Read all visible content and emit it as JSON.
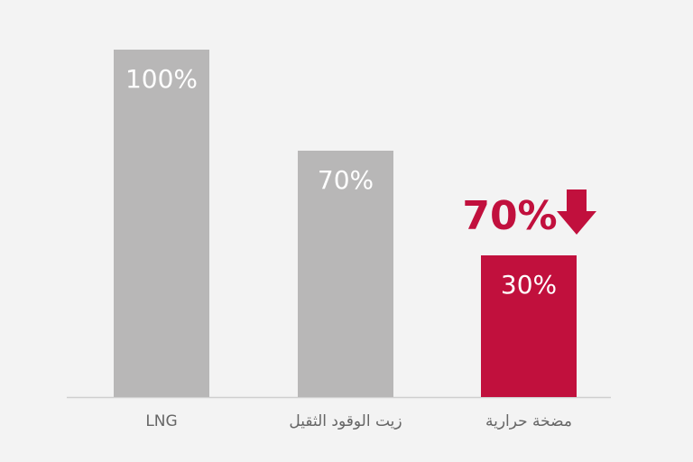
{
  "chart_data": {
    "type": "bar",
    "categories": [
      "LNG",
      "زيت الوقود الثقيل",
      "مضخة حرارية"
    ],
    "values": [
      100,
      70,
      30
    ],
    "data_labels": [
      "100%",
      "70%",
      "30%"
    ],
    "annotation": {
      "text": "70%",
      "icon": "arrow-down-icon",
      "target": "مضخة حرارية"
    },
    "bar_colors": [
      "#b8b7b7",
      "#b8b7b7",
      "#c1103d"
    ],
    "accent": "#c1103d",
    "grid": false,
    "title": "",
    "xlabel": "",
    "ylabel": ""
  }
}
